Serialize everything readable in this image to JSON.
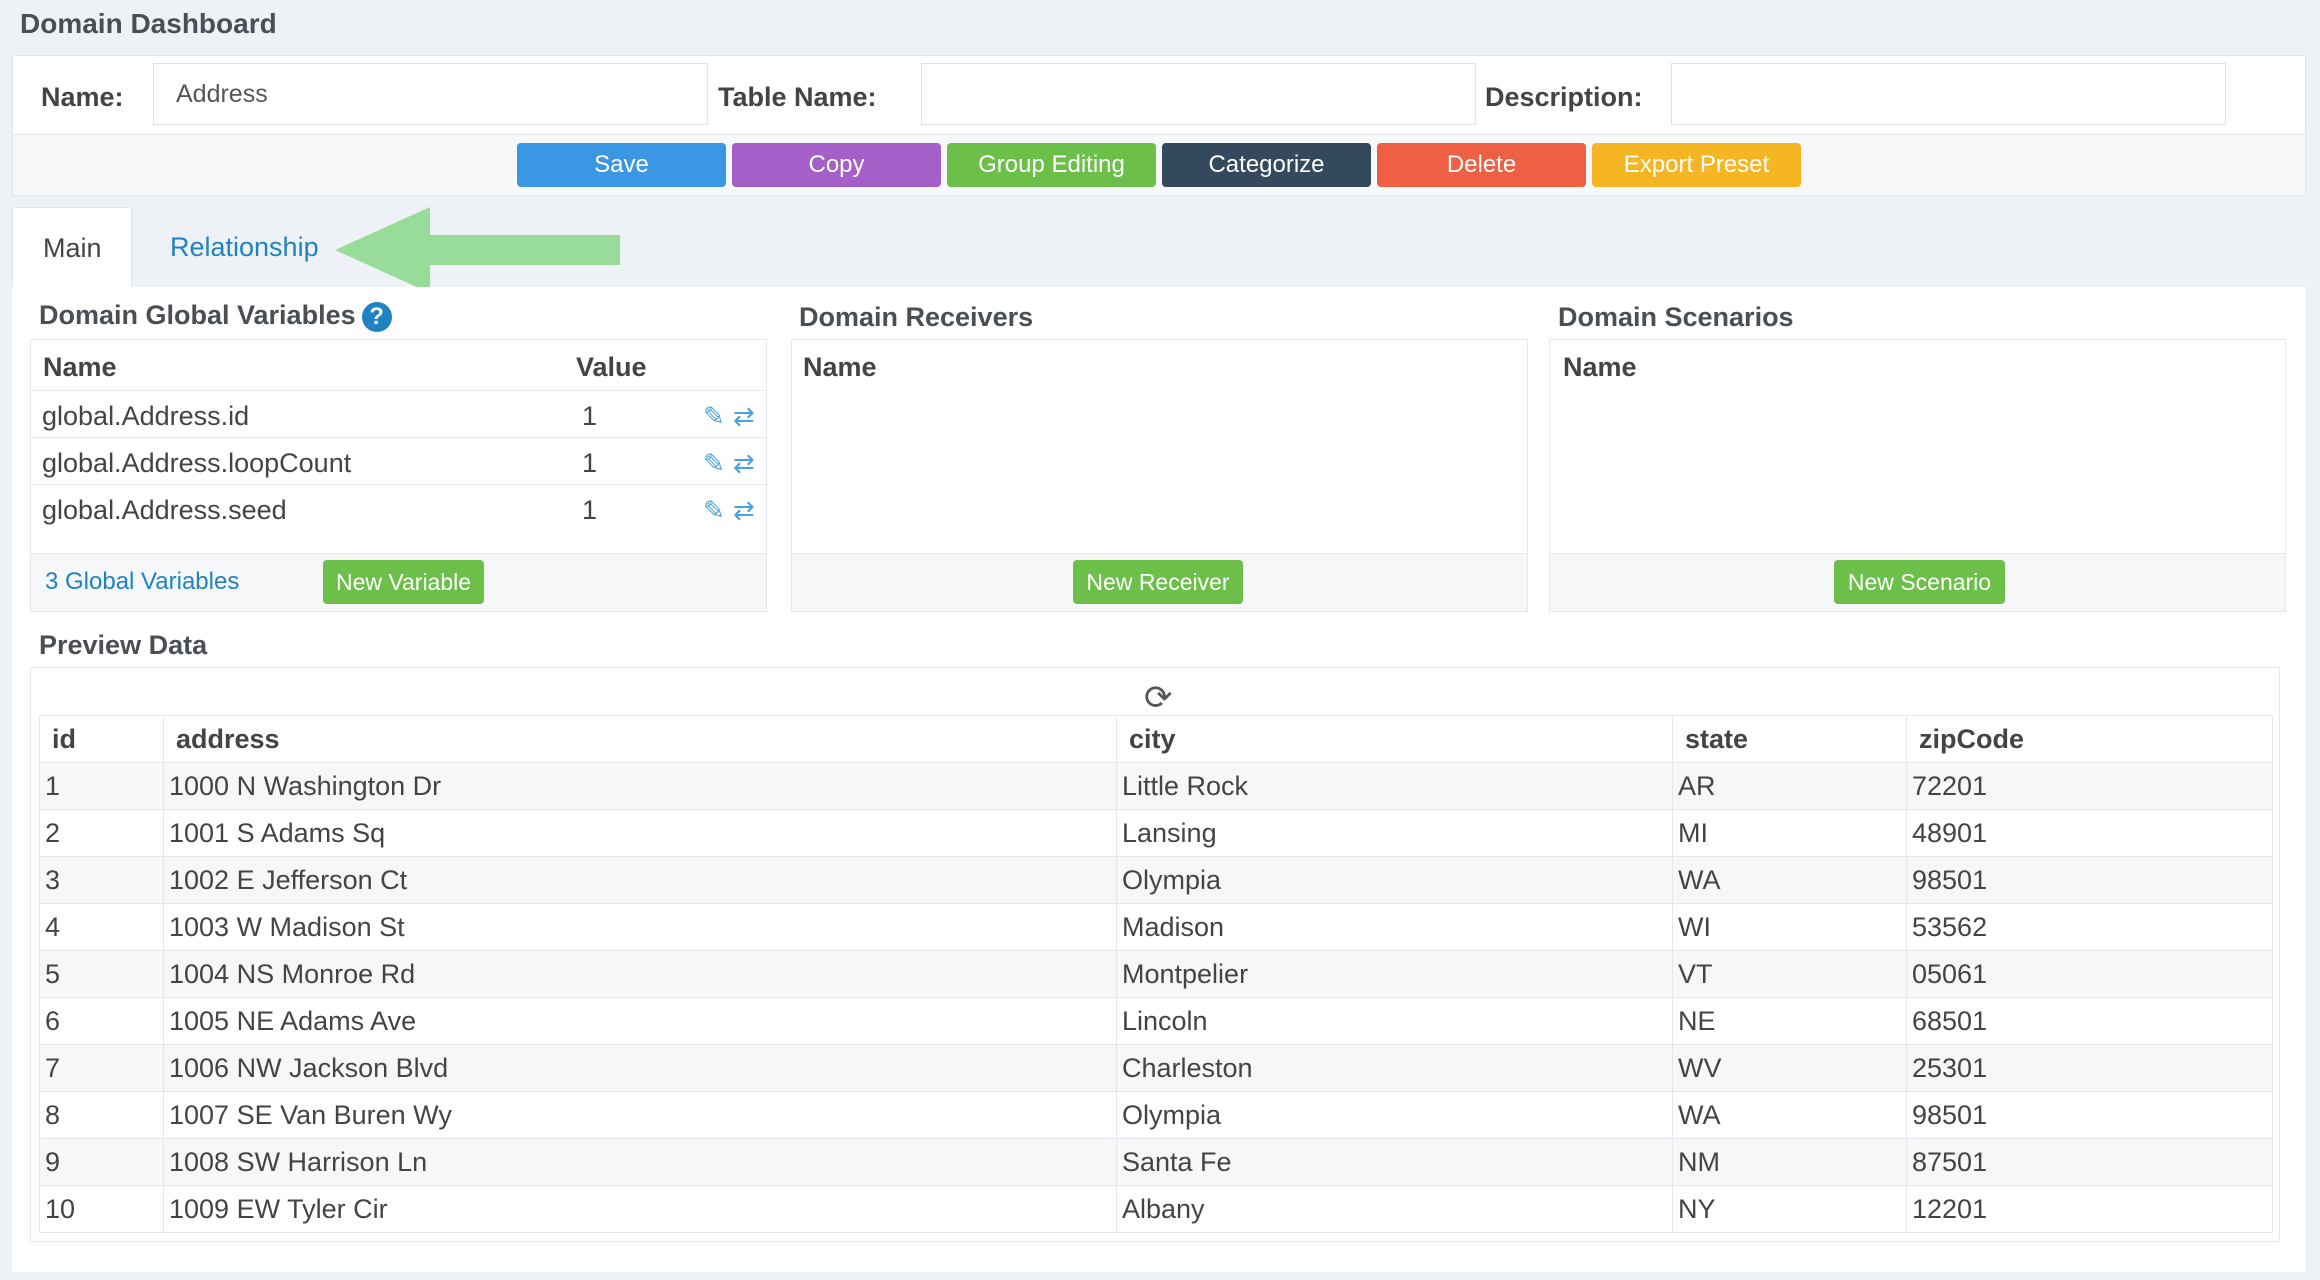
{
  "page": {
    "title": "Domain Dashboard"
  },
  "form": {
    "name_label": "Name:",
    "name_value": "Address",
    "table_name_label": "Table Name:",
    "table_name_value": "",
    "description_label": "Description:",
    "description_value": ""
  },
  "toolbar": {
    "buttons": [
      {
        "label": "Save",
        "color": "#3b97e3"
      },
      {
        "label": "Copy",
        "color": "#a55fc9"
      },
      {
        "label": "Group Editing",
        "color": "#6cc04a"
      },
      {
        "label": "Categorize",
        "color": "#34495e"
      },
      {
        "label": "Delete",
        "color": "#ef5f43"
      },
      {
        "label": "Export Preset",
        "color": "#f6b624"
      }
    ]
  },
  "tabs": [
    {
      "label": "Main",
      "active": true
    },
    {
      "label": "Relationship",
      "active": false
    }
  ],
  "global_vars": {
    "title": "Domain Global Variables",
    "help_icon": "question-circle-icon",
    "columns": [
      "Name",
      "Value"
    ],
    "rows": [
      {
        "name": "global.Address.id",
        "value": "1"
      },
      {
        "name": "global.Address.loopCount",
        "value": "1"
      },
      {
        "name": "global.Address.seed",
        "value": "1"
      }
    ],
    "count_link": "3 Global Variables",
    "new_button": "New Variable"
  },
  "receivers": {
    "title": "Domain Receivers",
    "column": "Name",
    "new_button": "New Receiver"
  },
  "scenarios": {
    "title": "Domain Scenarios",
    "column": "Name",
    "new_button": "New Scenario"
  },
  "preview": {
    "title": "Preview Data",
    "refresh_icon": "refresh-icon",
    "columns": [
      "id",
      "address",
      "city",
      "state",
      "zipCode"
    ],
    "rows": [
      [
        "1",
        "1000 N Washington Dr",
        "Little Rock",
        "AR",
        "72201"
      ],
      [
        "2",
        "1001 S Adams Sq",
        "Lansing",
        "MI",
        "48901"
      ],
      [
        "3",
        "1002 E Jefferson Ct",
        "Olympia",
        "WA",
        "98501"
      ],
      [
        "4",
        "1003 W Madison St",
        "Madison",
        "WI",
        "53562"
      ],
      [
        "5",
        "1004 NS Monroe Rd",
        "Montpelier",
        "VT",
        "05061"
      ],
      [
        "6",
        "1005 NE Adams Ave",
        "Lincoln",
        "NE",
        "68501"
      ],
      [
        "7",
        "1006 NW Jackson Blvd",
        "Charleston",
        "WV",
        "25301"
      ],
      [
        "8",
        "1007 SE Van Buren Wy",
        "Olympia",
        "WA",
        "98501"
      ],
      [
        "9",
        "1008 SW Harrison Ln",
        "Santa Fe",
        "NM",
        "87501"
      ],
      [
        "10",
        "1009 EW Tyler Cir",
        "Albany",
        "NY",
        "12201"
      ]
    ]
  },
  "colors": {
    "accent": "#1f82c2",
    "green": "#6cc04a",
    "arrow": "#8fd98f"
  }
}
